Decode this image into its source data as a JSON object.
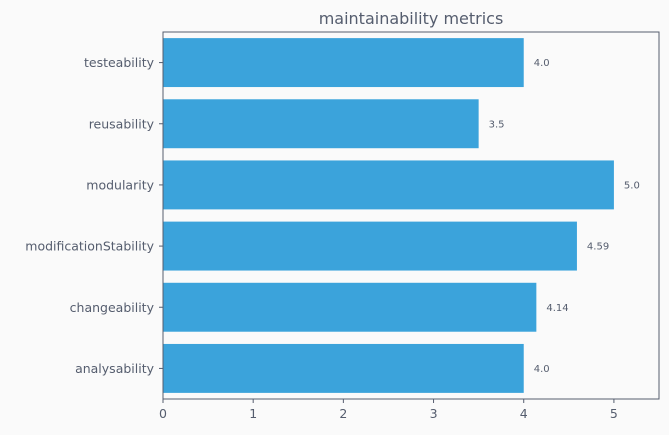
{
  "chart_data": {
    "type": "bar",
    "orientation": "horizontal",
    "title": "maintainability metrics",
    "xlabel": "",
    "ylabel": "",
    "categories": [
      "analysability",
      "changeability",
      "modificationStability",
      "modularity",
      "reusability",
      "testeability"
    ],
    "values": [
      4.0,
      4.14,
      4.59,
      5.0,
      3.5,
      4.0
    ],
    "value_labels": [
      "4.0",
      "4.14",
      "4.59",
      "5.0",
      "3.5",
      "4.0"
    ],
    "xlim": [
      0,
      5.5
    ],
    "xticks": [
      0,
      1,
      2,
      3,
      4,
      5
    ],
    "xtick_labels": [
      "0",
      "1",
      "2",
      "3",
      "4",
      "5"
    ],
    "grid": false,
    "bar_color": "#3ba3db",
    "axis_color": "#555d6e",
    "background_color": "#fafafa"
  }
}
